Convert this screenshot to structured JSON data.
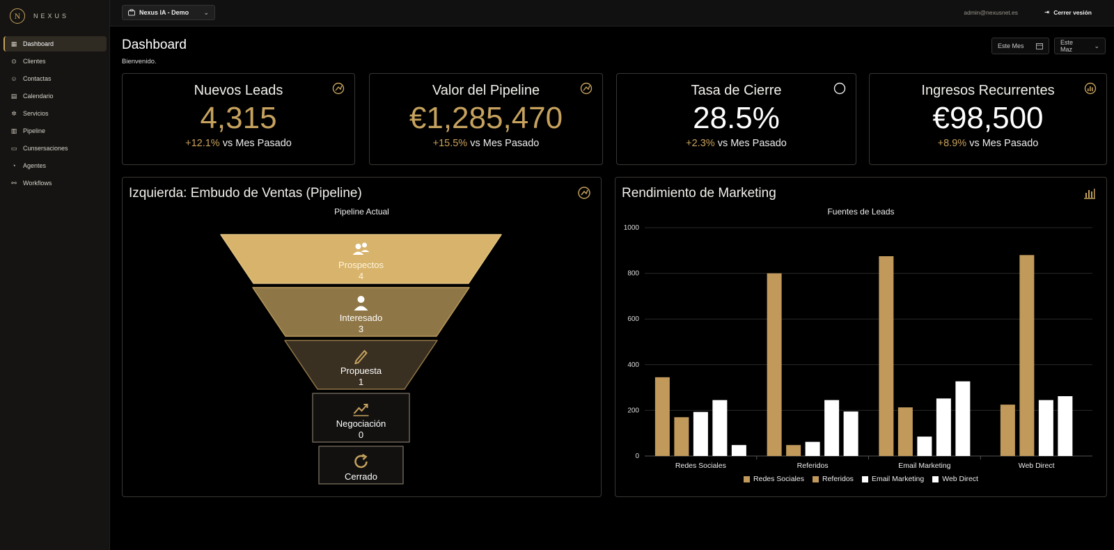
{
  "brand": {
    "name": "NEXUS",
    "mark": "N"
  },
  "sidebar": {
    "items": [
      {
        "label": "Dashboard",
        "icon": "grid-icon",
        "active": true
      },
      {
        "label": "Clientes",
        "icon": "clients-icon",
        "active": false
      },
      {
        "label": "Contactas",
        "icon": "contacts-icon",
        "active": false
      },
      {
        "label": "Calendario",
        "icon": "calendar-icon",
        "active": false
      },
      {
        "label": "Servicios",
        "icon": "services-icon",
        "active": false
      },
      {
        "label": "Pipeline",
        "icon": "pipeline-icon",
        "active": false
      },
      {
        "label": "Cunsersaciones",
        "icon": "chat-icon",
        "active": false
      },
      {
        "label": "Agentes",
        "icon": "agents-icon",
        "active": false
      },
      {
        "label": "Workflows",
        "icon": "workflow-icon",
        "active": false
      }
    ]
  },
  "topbar": {
    "workspace": "Nexus IA - Demo",
    "email": "admin@nexusnet.es",
    "logout_label": "Cerrer vesión"
  },
  "header": {
    "title": "Dashboard",
    "welcome": "Bienvenido.",
    "filter_date": "Este Mes",
    "filter_period": "Este Maz"
  },
  "kpis": [
    {
      "title": "Nuevos Leads",
      "value": "4,315",
      "delta": "+12.1%",
      "suffix": " vs Mes Pasado",
      "icon": "lead-icon",
      "gold": true
    },
    {
      "title": "Valor del Pipeline",
      "value": "€1,285,470",
      "delta": "+15.5%",
      "suffix": " vs Mes Pasado",
      "icon": "pipeline-value-icon",
      "gold": true
    },
    {
      "title": "Tasa de Cierre",
      "value": "28.5%",
      "delta": "+2.3%",
      "suffix": " vs Mes Pasado",
      "icon": "circle-icon",
      "gold": false
    },
    {
      "title": "Ingresos Recurrentes",
      "value": "€98,500",
      "delta": "+8.9%",
      "suffix": " vs Mes Pasado",
      "icon": "revenue-icon",
      "gold": false
    }
  ],
  "funnel_panel": {
    "title": "Izquierda: Embudo de Ventas (Pipeline)",
    "subtitle": "Pipeline Actual",
    "stages": [
      {
        "label": "Prospectos",
        "count": "4",
        "icon": "users-icon"
      },
      {
        "label": "Interesado",
        "count": "3",
        "icon": "user-icon"
      },
      {
        "label": "Propuesta",
        "count": "1",
        "icon": "pencil-icon"
      },
      {
        "label": "Negociación",
        "count": "0",
        "icon": "trend-icon"
      },
      {
        "label": "Cerrado",
        "count": "",
        "icon": "refresh-icon"
      }
    ]
  },
  "marketing_panel": {
    "title": "Rendimiento de Marketing"
  },
  "chart_data": {
    "type": "bar",
    "title": "Fuentes de Leads",
    "xlabel": "",
    "ylabel": "",
    "ylim": [
      0,
      1000
    ],
    "yticks": [
      0,
      200,
      400,
      600,
      800,
      1000
    ],
    "categories": [
      "Redes Sociales",
      "Referidos",
      "Email Marketing",
      "Web Direct"
    ],
    "series": [
      {
        "name": "Redes Sociales",
        "color": "#c19a5b",
        "values": [
          345,
          800,
          875,
          225
        ]
      },
      {
        "name": "Referidos",
        "color": "#c19a5b",
        "values": [
          170,
          48,
          213,
          880
        ]
      },
      {
        "name": "Email Marketing",
        "color": "#ffffff",
        "values": [
          193,
          62,
          85,
          245
        ]
      },
      {
        "name": "Web Direct",
        "color": "#ffffff",
        "values": [
          245,
          245,
          252,
          262
        ]
      },
      {
        "name": "",
        "color": "#ffffff",
        "values": [
          48,
          195,
          327,
          null
        ]
      }
    ],
    "grid": true,
    "legend_position": "bottom"
  }
}
